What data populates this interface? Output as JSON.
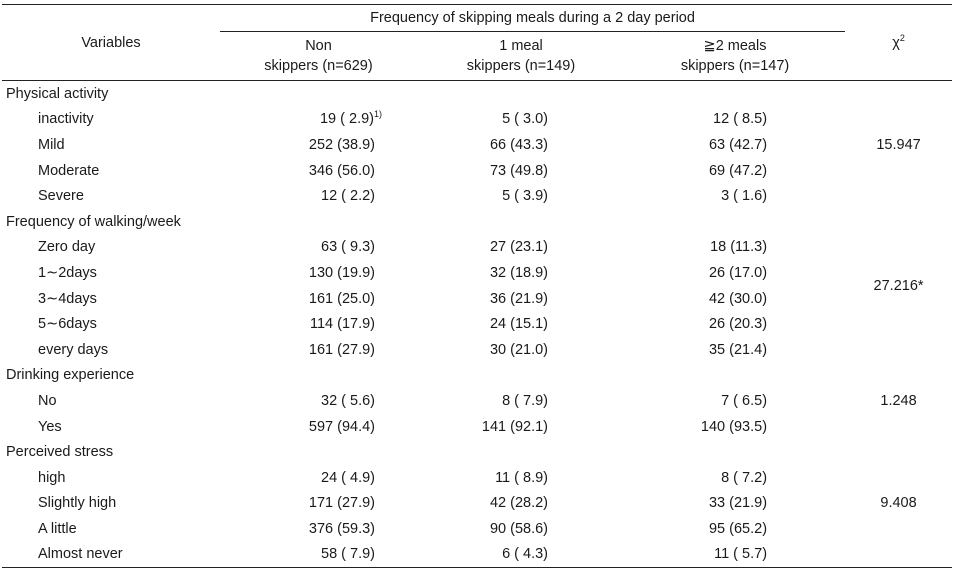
{
  "header": {
    "variables": "Variables",
    "group": "Frequency of skipping meals during a 2 day period",
    "chi_base": "χ",
    "chi_sup": "2",
    "columns": [
      {
        "line1": "Non",
        "line2": "skippers (n=629)"
      },
      {
        "line1": "1 meal",
        "line2": "skippers (n=149)"
      },
      {
        "line1": "≧2 meals",
        "line2": "skippers (n=147)"
      }
    ]
  },
  "sections": [
    {
      "title": "Physical activity",
      "chi": "15.947",
      "rows": [
        {
          "label": "inactivity",
          "v1": "19 (  2.9)",
          "v1_sup": "1)",
          "v2": "5 (  3.0)",
          "v3": "12 (  8.5)"
        },
        {
          "label": "Mild",
          "v1": "252 (38.9)",
          "v2": "66 (43.3)",
          "v3": "63 (42.7)"
        },
        {
          "label": "Moderate",
          "v1": "346 (56.0)",
          "v2": "73 (49.8)",
          "v3": "69 (47.2)"
        },
        {
          "label": "Severe",
          "v1": "12 (  2.2)",
          "v2": "5 (  3.9)",
          "v3": "3 (  1.6)"
        }
      ]
    },
    {
      "title": "Frequency of walking/week",
      "chi": "27.216*",
      "rows": [
        {
          "label": "Zero day",
          "v1": "63 (  9.3)",
          "v2": "27 (23.1)",
          "v3": "18 (11.3)"
        },
        {
          "label": "1∼2days",
          "v1": "130 (19.9)",
          "v2": "32 (18.9)",
          "v3": "26 (17.0)"
        },
        {
          "label": "3∼4days",
          "v1": "161 (25.0)",
          "v2": "36 (21.9)",
          "v3": "42 (30.0)"
        },
        {
          "label": "5∼6days",
          "v1": "114 (17.9)",
          "v2": "24 (15.1)",
          "v3": "26 (20.3)"
        },
        {
          "label": "every days",
          "v1": "161 (27.9)",
          "v2": "30 (21.0)",
          "v3": "35 (21.4)"
        }
      ]
    },
    {
      "title": "Drinking experience",
      "chi": "1.248",
      "rows": [
        {
          "label": "No",
          "v1": "32 (  5.6)",
          "v2": "8 (  7.9)",
          "v3": "7 (  6.5)"
        },
        {
          "label": "Yes",
          "v1": "597 (94.4)",
          "v2": "141 (92.1)",
          "v3": "140 (93.5)"
        }
      ]
    },
    {
      "title": "Perceived stress",
      "chi": "9.408",
      "rows": [
        {
          "label": "high",
          "v1": "24 (  4.9)",
          "v2": "11 (  8.9)",
          "v3": "8 (  7.2)"
        },
        {
          "label": "Slightly high",
          "v1": "171 (27.9)",
          "v2": "42 (28.2)",
          "v3": "33 (21.9)"
        },
        {
          "label": "A little",
          "v1": "376 (59.3)",
          "v2": "90 (58.6)",
          "v3": "95 (65.2)"
        },
        {
          "label": "Almost never",
          "v1": "58 (  7.9)",
          "v2": "6 (  4.3)",
          "v3": "11 (  5.7)"
        }
      ]
    }
  ]
}
